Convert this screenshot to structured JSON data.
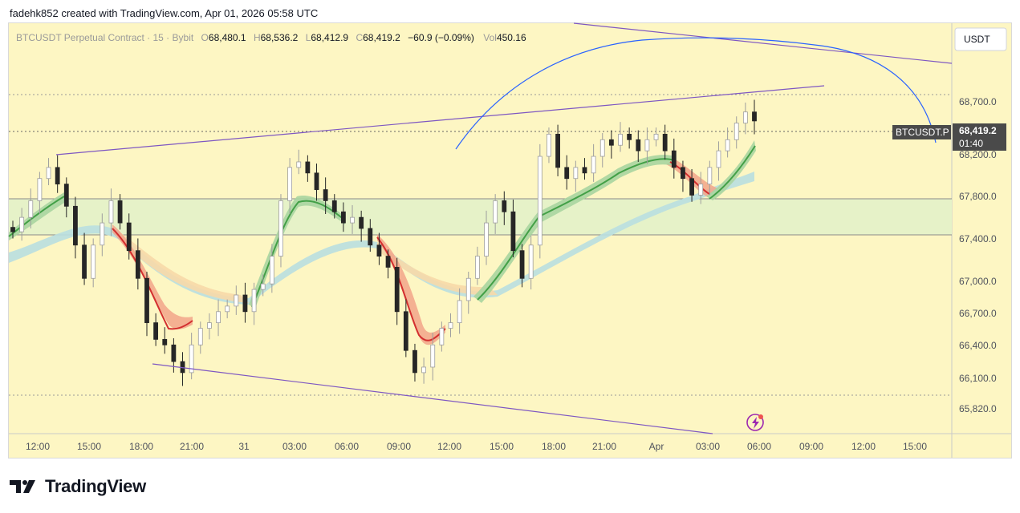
{
  "header": {
    "attribution": "fadehk852 created with TradingView.com, Apr 01, 2026 05:58 UTC"
  },
  "legend": {
    "symbol": "BTCUSDT Perpetual Contract · 15 · Bybit",
    "o_label": "O",
    "o_value": "68,480.1",
    "h_label": "H",
    "h_value": "68,536.2",
    "l_label": "L",
    "l_value": "68,412.9",
    "c_label": "C",
    "c_value": "68,419.2",
    "change": "−60.9 (−0.09%)",
    "vol_label": "Vol",
    "vol_value": "450.16"
  },
  "price_scale": {
    "currency": "USDT",
    "labels": [
      "68,700.0",
      "68,200.0",
      "67,800.0",
      "67,400.0",
      "67,000.0",
      "66,700.0",
      "66,400.0",
      "66,100.0",
      "65,820.0"
    ]
  },
  "price_tag": {
    "symbol": "BTCUSDT.P",
    "price": "68,419.2",
    "countdown": "01:40"
  },
  "time_axis": [
    "12:00",
    "15:00",
    "18:00",
    "21:00",
    "31",
    "03:00",
    "06:00",
    "09:00",
    "12:00",
    "15:00",
    "18:00",
    "21:00",
    "Apr",
    "03:00",
    "06:00",
    "09:00",
    "12:00",
    "15:00"
  ],
  "footer": {
    "brand": "TradingView"
  },
  "colors": {
    "background": "#fdf6c3",
    "up": "#26a69a",
    "down": "#ef5350",
    "trendline": "#7e57c2",
    "curve": "#2962ff",
    "zone": "#e6f2c8"
  },
  "chart_data": {
    "type": "candlestick",
    "title": "BTCUSDT Perpetual Contract · 15 · Bybit",
    "ylim": [
      65600,
      69300
    ],
    "grid": false,
    "horizontal_levels": [
      68700,
      68419.2,
      67800,
      67440,
      65950
    ],
    "zone": [
      67440,
      67800
    ],
    "series": [
      {
        "name": "price",
        "values": [
          67420,
          67550,
          67700,
          67900,
          68000,
          67850,
          67650,
          67300,
          67000,
          67300,
          67500,
          67700,
          67500,
          67250,
          67000,
          66600,
          66450,
          66400,
          66250,
          66150,
          66400,
          66550,
          66600,
          66700,
          66750,
          66850,
          66700,
          66900,
          66950,
          67200,
          67700,
          68000,
          68050,
          67950,
          67800,
          67700,
          67600,
          67500,
          67550,
          67450,
          67300,
          67200,
          67100,
          66700,
          66350,
          66150,
          66200,
          66400,
          66550,
          66600,
          66800,
          67000,
          67200,
          67500,
          67700,
          67600,
          67250,
          67000,
          67300,
          68100,
          68300,
          68000,
          67900,
          68000,
          67950,
          68100,
          68250,
          68200,
          68300,
          68250,
          68150,
          68250,
          68300,
          68150,
          68000,
          67900,
          67750,
          67850,
          68000,
          68150,
          68250,
          68400,
          68500,
          68419.2
        ]
      }
    ]
  }
}
